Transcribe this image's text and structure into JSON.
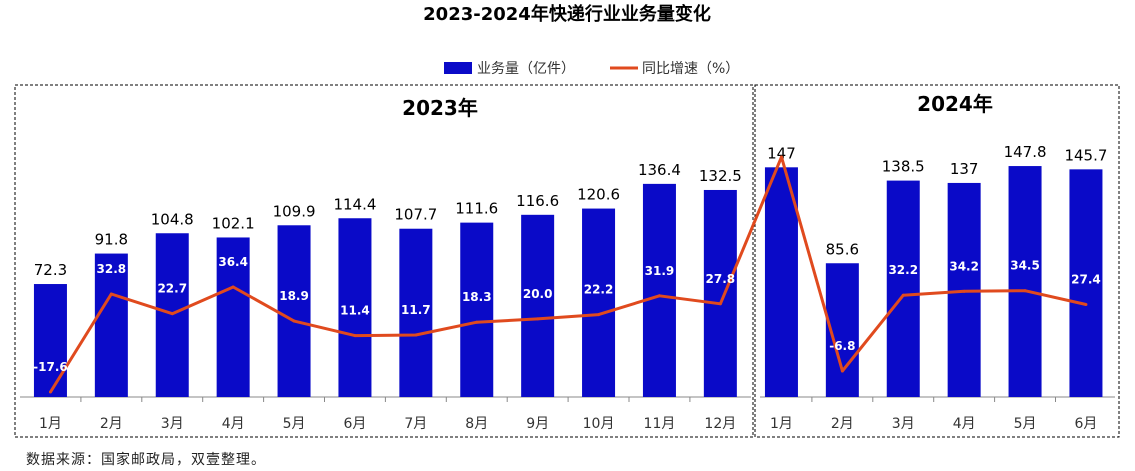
{
  "source_note": "数据来源：国家邮政局，双壹整理。",
  "colors": {
    "bar": "#0a0ac8",
    "line": "#e04a1e"
  },
  "chart_data": {
    "type": "bar+line",
    "title": "2023-2024年快递行业业务量变化",
    "legend": {
      "position": "top-center",
      "entries": [
        "业务量（亿件）",
        "同比增速（%）"
      ]
    },
    "panels": [
      {
        "name": "2023年",
        "categories": [
          "1月",
          "2月",
          "3月",
          "4月",
          "5月",
          "6月",
          "7月",
          "8月",
          "9月",
          "10月",
          "11月",
          "12月"
        ]
      },
      {
        "name": "2024年",
        "categories": [
          "1月",
          "2月",
          "3月",
          "4月",
          "5月",
          "6月"
        ]
      }
    ],
    "series": [
      {
        "name": "业务量（亿件）",
        "type": "bar",
        "values": [
          72.3,
          91.8,
          104.8,
          102.1,
          109.9,
          114.4,
          107.7,
          111.6,
          116.6,
          120.6,
          136.4,
          132.5,
          147,
          85.6,
          138.5,
          137,
          147.8,
          145.7
        ]
      },
      {
        "name": "同比增速（%）",
        "type": "line",
        "values": [
          -17.6,
          32.8,
          22.7,
          36.4,
          18.9,
          11.4,
          11.7,
          18.3,
          20.0,
          22.2,
          31.9,
          27.8,
          103.3,
          -6.8,
          32.2,
          34.2,
          34.5,
          27.4
        ]
      }
    ],
    "bar_labels": [
      "72.3",
      "91.8",
      "104.8",
      "102.1",
      "109.9",
      "114.4",
      "107.7",
      "111.6",
      "116.6",
      "120.6",
      "136.4",
      "132.5",
      "147",
      "85.6",
      "138.5",
      "137",
      "147.8",
      "145.7"
    ],
    "line_labels": [
      "-17.6",
      "32.8",
      "22.7",
      "36.4",
      "18.9",
      "11.4",
      "11.7",
      "18.3",
      "20.0",
      "22.2",
      "31.9",
      "27.8",
      "103.3",
      "-6.8",
      "32.2",
      "34.2",
      "34.5",
      "27.4"
    ],
    "bar_axis_range": [
      0,
      160
    ],
    "line_axis_range": [
      -20,
      150
    ],
    "grid": false
  }
}
